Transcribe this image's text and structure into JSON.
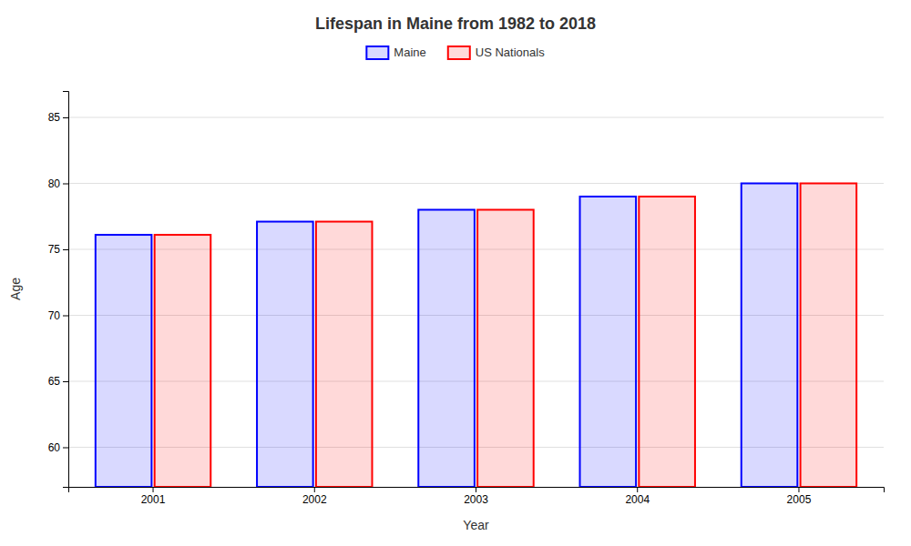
{
  "chart_data": {
    "type": "bar",
    "title": "Lifespan in Maine from 1982 to 2018",
    "xlabel": "Year",
    "ylabel": "Age",
    "categories": [
      "2001",
      "2002",
      "2003",
      "2004",
      "2005"
    ],
    "series": [
      {
        "name": "Maine",
        "color": "#0000ff",
        "values": [
          76.1,
          77.1,
          78.0,
          79.0,
          80.0
        ]
      },
      {
        "name": "US Nationals",
        "color": "#ff0000",
        "values": [
          76.1,
          77.1,
          78.0,
          79.0,
          80.0
        ]
      }
    ],
    "ylim": [
      57,
      87
    ],
    "yticks": [
      60,
      65,
      70,
      75,
      80,
      85
    ],
    "grid": true,
    "legend": "top"
  }
}
